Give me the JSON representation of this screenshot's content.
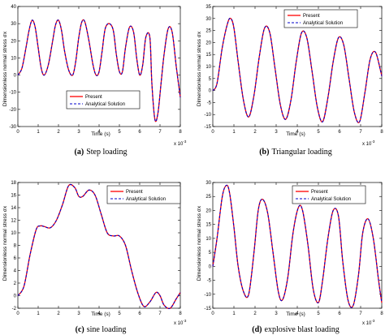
{
  "colors": {
    "present": "#ff0000",
    "analytical": "#0000cc"
  },
  "chart_data": [
    {
      "type": "line",
      "caption_label": "(a)",
      "caption": "Step loading",
      "xlabel": "Time (s)",
      "x_scale_note": "x 10",
      "x_scale_exp": "-3",
      "ylabel": "Dimensionless normal stress σx",
      "xlim": [
        0,
        8
      ],
      "ylim": [
        -30,
        40
      ],
      "xticks": [
        0,
        1,
        2,
        3,
        4,
        5,
        6,
        7,
        8
      ],
      "yticks": [
        -30,
        -20,
        -10,
        0,
        10,
        20,
        30,
        40
      ],
      "legend_position": "center-right",
      "series": [
        {
          "name": "Present",
          "style": "solid"
        },
        {
          "name": "Analytical Solution",
          "style": "dashed"
        }
      ],
      "x": [
        0,
        0.2,
        0.4,
        0.55,
        0.7,
        0.85,
        1.0,
        1.15,
        1.3,
        1.5,
        1.7,
        1.85,
        2.0,
        2.15,
        2.3,
        2.5,
        2.7,
        2.85,
        3.0,
        3.15,
        3.3,
        3.5,
        3.7,
        3.85,
        4.0,
        4.15,
        4.3,
        4.5,
        4.7,
        4.85,
        5.0,
        5.15,
        5.3,
        5.5,
        5.7,
        5.85,
        6.0,
        6.15,
        6.3,
        6.5,
        6.6,
        6.75,
        6.9,
        7.05,
        7.2,
        7.4,
        7.6,
        7.8,
        8.0
      ],
      "y": [
        0,
        4,
        16,
        26,
        32,
        28,
        16,
        4,
        0,
        6,
        19,
        29,
        32,
        26,
        14,
        3,
        0,
        8,
        22,
        31,
        31,
        20,
        6,
        0,
        2,
        14,
        27,
        30,
        26,
        12,
        2,
        2,
        16,
        28,
        25,
        10,
        0,
        6,
        22,
        22,
        -5,
        -26,
        -22,
        -5,
        12,
        27,
        25,
        5,
        -13
      ]
    },
    {
      "type": "line",
      "caption_label": "(b)",
      "caption": "Triangular loading",
      "xlabel": "Time (s)",
      "x_scale_note": "x 10",
      "x_scale_exp": "-3",
      "ylabel": "Dimensionless normal stress σx",
      "xlim": [
        0,
        8
      ],
      "ylim": [
        -15,
        35
      ],
      "xticks": [
        0,
        1,
        2,
        3,
        4,
        5,
        6,
        7,
        8
      ],
      "yticks": [
        -15,
        -10,
        -5,
        0,
        5,
        10,
        15,
        20,
        25,
        30,
        35
      ],
      "legend_position": "top-right",
      "series": [
        {
          "name": "Present",
          "style": "solid"
        },
        {
          "name": "Analytical Solution",
          "style": "dashed"
        }
      ],
      "x": [
        0,
        0.2,
        0.45,
        0.7,
        0.85,
        1.0,
        1.2,
        1.45,
        1.7,
        1.95,
        2.2,
        2.45,
        2.7,
        2.95,
        3.2,
        3.45,
        3.7,
        3.95,
        4.2,
        4.45,
        4.7,
        4.95,
        5.2,
        5.45,
        5.7,
        5.95,
        6.2,
        6.45,
        6.7,
        6.95,
        7.2,
        7.45,
        7.7,
        7.95,
        8.0
      ],
      "y": [
        0,
        3,
        18,
        28,
        30,
        26,
        12,
        -4,
        -11,
        -2,
        14,
        26,
        24,
        9,
        -6,
        -12,
        -4,
        12,
        24,
        22,
        8,
        -7,
        -13,
        -3,
        12,
        22,
        19,
        5,
        -9,
        -13,
        -1,
        13,
        16,
        8,
        6
      ]
    },
    {
      "type": "line",
      "caption_label": "(c)",
      "caption": "sine loading",
      "xlabel": "Time (s)",
      "x_scale_note": "x 10",
      "x_scale_exp": "-3",
      "ylabel": "Dimensionless normal stress σx",
      "xlim": [
        0,
        8
      ],
      "ylim": [
        -2,
        18
      ],
      "xticks": [
        0,
        1,
        2,
        3,
        4,
        5,
        6,
        7,
        8
      ],
      "yticks": [
        -2,
        0,
        2,
        4,
        6,
        8,
        10,
        12,
        14,
        16,
        18
      ],
      "legend_position": "top-right",
      "series": [
        {
          "name": "Present",
          "style": "solid"
        },
        {
          "name": "Analytical Solution",
          "style": "dashed"
        }
      ],
      "x": [
        0,
        0.3,
        0.6,
        0.9,
        1.1,
        1.3,
        1.6,
        1.9,
        2.2,
        2.5,
        2.8,
        3.0,
        3.2,
        3.5,
        3.8,
        4.1,
        4.4,
        4.7,
        5.0,
        5.3,
        5.6,
        5.9,
        6.2,
        6.5,
        6.8,
        7.0,
        7.2,
        7.5,
        7.8,
        8.0
      ],
      "y": [
        0,
        1.5,
        6.5,
        10.5,
        11.1,
        11,
        10.8,
        12,
        14.5,
        17.5,
        17.2,
        15.8,
        15.8,
        16.8,
        16,
        13,
        10,
        9.5,
        9.5,
        8,
        4,
        0.5,
        -1.7,
        -1,
        0.5,
        0,
        -1.5,
        -2,
        -0.5,
        0.5
      ]
    },
    {
      "type": "line",
      "caption_label": "(d)",
      "caption": "explosive blast loading",
      "xlabel": "Time (s)",
      "x_scale_note": "x 10",
      "x_scale_exp": "-3",
      "ylabel": "Dimensionless normal stress σx",
      "xlim": [
        0,
        8
      ],
      "ylim": [
        -15,
        30
      ],
      "xticks": [
        0,
        1,
        2,
        3,
        4,
        5,
        6,
        7,
        8
      ],
      "yticks": [
        -15,
        -10,
        -5,
        0,
        5,
        10,
        15,
        20,
        25,
        30
      ],
      "legend_position": "top-right",
      "series": [
        {
          "name": "Present",
          "style": "solid"
        },
        {
          "name": "Analytical Solution",
          "style": "dashed"
        }
      ],
      "x": [
        0,
        0.2,
        0.45,
        0.65,
        0.8,
        1.0,
        1.2,
        1.45,
        1.7,
        1.95,
        2.15,
        2.35,
        2.6,
        2.85,
        3.1,
        3.3,
        3.55,
        3.8,
        4.05,
        4.25,
        4.5,
        4.75,
        5.0,
        5.2,
        5.45,
        5.7,
        5.95,
        6.15,
        6.4,
        6.65,
        6.9,
        7.1,
        7.35,
        7.6,
        7.85,
        8.0
      ],
      "y": [
        0,
        10,
        25,
        29,
        26,
        14,
        0,
        -9,
        -10,
        5,
        20,
        24,
        19,
        5,
        -9,
        -12,
        -4,
        12,
        21,
        20,
        8,
        -8,
        -13,
        -5,
        10,
        20,
        18,
        2,
        -12,
        -14,
        -3,
        12,
        17,
        10,
        -5,
        -13
      ]
    }
  ]
}
